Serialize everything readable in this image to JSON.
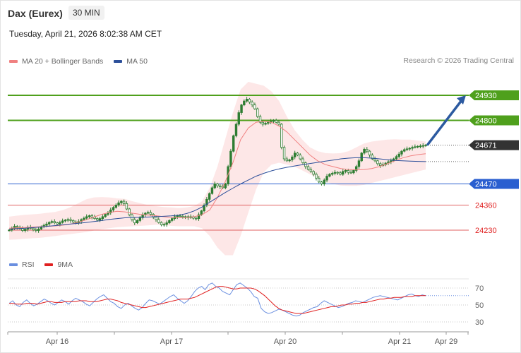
{
  "header": {
    "title": "Dax (Eurex)",
    "interval": "30 MIN",
    "datetime": "Tuesday, April 21, 2026 8:02:38 AM CET"
  },
  "legend": {
    "ma20_label": "MA 20 + Bollinger Bands",
    "ma50_label": "MA 50",
    "copyright": "Research © 2026 Trading Central"
  },
  "rsi_legend": {
    "rsi_label": "RSI",
    "ma9_label": "9MA"
  },
  "colors": {
    "resistance": "#4fa01c",
    "support_blue": "#2a5fd0",
    "support_red": "#e06060",
    "last_price": "#333333",
    "ma20": "#f08080",
    "ma50": "#2c4f9a",
    "bollinger_fill": "#fde3e3",
    "candle": "#2e7d32",
    "arrow": "#2c5aa0",
    "rsi": "#6a8fe0",
    "rsi_ma": "#e02020"
  },
  "chart_data": [
    {
      "type": "candlestick",
      "title": "Dax (Eurex)",
      "ylim": [
        24180,
        24990
      ],
      "x_ticks": [
        "Apr 16",
        "Apr 17",
        "Apr 20",
        "Apr 21",
        "Apr 29"
      ],
      "levels": [
        {
          "value": 24930,
          "label": "24930",
          "kind": "resistance"
        },
        {
          "value": 24800,
          "label": "24800",
          "kind": "resistance"
        },
        {
          "value": 24671,
          "label": "24671",
          "kind": "last"
        },
        {
          "value": 24470,
          "label": "24470",
          "kind": "support"
        },
        {
          "value": 24360,
          "label": "24360",
          "kind": "support-minor"
        },
        {
          "value": 24230,
          "label": "24230",
          "kind": "support-minor"
        }
      ],
      "close": [
        24230,
        24240,
        24250,
        24245,
        24238,
        24228,
        24235,
        24245,
        24240,
        24232,
        24228,
        24236,
        24248,
        24255,
        24262,
        24270,
        24275,
        24268,
        24262,
        24270,
        24278,
        24282,
        24285,
        24280,
        24272,
        24268,
        24275,
        24285,
        24292,
        24300,
        24305,
        24298,
        24290,
        24282,
        24290,
        24300,
        24312,
        24320,
        24335,
        24348,
        24360,
        24372,
        24380,
        24368,
        24340,
        24310,
        24285,
        24268,
        24280,
        24295,
        24310,
        24318,
        24322,
        24312,
        24298,
        24285,
        24270,
        24258,
        24260,
        24268,
        24280,
        24290,
        24300,
        24305,
        24302,
        24298,
        24300,
        24295,
        24300,
        24292,
        24290,
        24310,
        24330,
        24360,
        24390,
        24420,
        24450,
        24470,
        24460,
        24455,
        24450,
        24470,
        24560,
        24640,
        24720,
        24780,
        24840,
        24880,
        24900,
        24910,
        24895,
        24880,
        24860,
        24820,
        24790,
        24780,
        24785,
        24790,
        24795,
        24800,
        24790,
        24780,
        24660,
        24600,
        24590,
        24595,
        24610,
        24630,
        24620,
        24600,
        24580,
        24560,
        24545,
        24535,
        24520,
        24500,
        24480,
        24470,
        24490,
        24510,
        24520,
        24525,
        24530,
        24528,
        24520,
        24535,
        24540,
        24530,
        24528,
        24540,
        24560,
        24590,
        24630,
        24650,
        24640,
        24620,
        24600,
        24590,
        24575,
        24565,
        24570,
        24578,
        24585,
        24590,
        24600,
        24612,
        24625,
        24640,
        24648,
        24652,
        24655,
        24660,
        24663,
        24665,
        24667,
        24669,
        24671
      ],
      "ma20": [
        24240,
        24242,
        24244,
        24246,
        24248,
        24250,
        24252,
        24256,
        24262,
        24272,
        24284,
        24298,
        24312,
        24322,
        24328,
        24325,
        24318,
        24312,
        24308,
        24305,
        24300,
        24296,
        24294,
        24296,
        24300,
        24310,
        24335,
        24400,
        24480,
        24580,
        24700,
        24760,
        24790,
        24795,
        24790,
        24770,
        24740,
        24700,
        24660,
        24620,
        24590,
        24570,
        24560,
        24550,
        24545,
        24543,
        24545,
        24550,
        24560,
        24575,
        24590,
        24605,
        24615,
        24622,
        24627
      ],
      "ma50": [
        24235,
        24238,
        24240,
        24243,
        24246,
        24250,
        24254,
        24258,
        24262,
        24266,
        24270,
        24275,
        24280,
        24286,
        24290,
        24294,
        24296,
        24297,
        24298,
        24300,
        24302,
        24304,
        24308,
        24316,
        24330,
        24350,
        24375,
        24400,
        24425,
        24448,
        24470,
        24490,
        24510,
        24525,
        24538,
        24548,
        24556,
        24563,
        24570,
        24576,
        24582,
        24588,
        24594,
        24600,
        24604,
        24606,
        24606,
        24604,
        24600,
        24596,
        24592,
        24590,
        24588,
        24587,
        24586
      ],
      "bb_upper": [
        24300,
        24305,
        24310,
        24312,
        24315,
        24320,
        24325,
        24335,
        24350,
        24370,
        24390,
        24400,
        24402,
        24400,
        24395,
        24392,
        24380,
        24370,
        24360,
        24355,
        24350,
        24348,
        24345,
        24348,
        24355,
        24380,
        24450,
        24560,
        24700,
        24840,
        24960,
        25000,
        24990,
        24980,
        24950,
        24900,
        24820,
        24750,
        24700,
        24660,
        24640,
        24630,
        24628,
        24630,
        24640,
        24660,
        24680,
        24690,
        24695,
        24700,
        24702,
        24700,
        24700,
        24695,
        24690
      ],
      "bb_lower": [
        24180,
        24182,
        24185,
        24188,
        24190,
        24195,
        24200,
        24205,
        24210,
        24215,
        24220,
        24228,
        24235,
        24240,
        24245,
        24248,
        24250,
        24252,
        24255,
        24258,
        24256,
        24252,
        24250,
        24250,
        24250,
        24240,
        24200,
        24140,
        24100,
        24100,
        24200,
        24320,
        24440,
        24530,
        24570,
        24580,
        24570,
        24560,
        24540,
        24520,
        24500,
        24480,
        24470,
        24462,
        24460,
        24460,
        24465,
        24475,
        24485,
        24495,
        24505,
        24515,
        24525,
        24535,
        24545
      ],
      "projection": {
        "from": 24675,
        "to": 24930
      }
    },
    {
      "type": "line",
      "title": "RSI",
      "ylim": [
        20,
        80
      ],
      "y_ticks": [
        70,
        50,
        30
      ],
      "series": [
        {
          "name": "RSI",
          "values": [
            52,
            55,
            50,
            48,
            53,
            56,
            52,
            49,
            51,
            54,
            57,
            55,
            52,
            50,
            53,
            56,
            54,
            51,
            55,
            58,
            56,
            54,
            51,
            49,
            53,
            57,
            60,
            62,
            58,
            54,
            52,
            48,
            46,
            50,
            52,
            49,
            46,
            44,
            47,
            52,
            56,
            55,
            53,
            51,
            54,
            57,
            60,
            62,
            58,
            55,
            52,
            55,
            60,
            66,
            70,
            72,
            68,
            74,
            76,
            72,
            70,
            66,
            64,
            62,
            68,
            74,
            76,
            73,
            70,
            66,
            60,
            58,
            46,
            42,
            40,
            41,
            43,
            45,
            44,
            42,
            40,
            38,
            37,
            38,
            41,
            43,
            45,
            47,
            48,
            52,
            55,
            53,
            51,
            49,
            47,
            48,
            50,
            52,
            53,
            55,
            54,
            53,
            55,
            57,
            59,
            60,
            61,
            60,
            59,
            58,
            57,
            56,
            58,
            60,
            62,
            63,
            61,
            60,
            62,
            61
          ]
        },
        {
          "name": "9MA",
          "values": [
            52,
            52,
            51,
            51,
            51,
            52,
            52,
            52,
            51,
            52,
            53,
            54,
            54,
            53,
            53,
            53,
            54,
            54,
            54,
            54,
            55,
            55,
            55,
            54,
            54,
            54,
            55,
            56,
            57,
            57,
            56,
            55,
            53,
            52,
            51,
            50,
            49,
            48,
            47,
            47,
            48,
            49,
            50,
            51,
            52,
            53,
            54,
            55,
            56,
            57,
            57,
            57,
            58,
            59,
            61,
            63,
            65,
            67,
            69,
            71,
            72,
            72,
            71,
            70,
            69,
            69,
            70,
            70,
            70,
            70,
            69,
            67,
            64,
            61,
            57,
            53,
            49,
            46,
            44,
            43,
            42,
            41,
            40,
            40,
            40,
            41,
            42,
            43,
            44,
            45,
            46,
            47,
            48,
            48,
            49,
            50,
            50,
            51,
            51,
            52,
            52,
            53,
            53,
            54,
            55,
            56,
            57,
            57,
            58,
            58,
            59,
            59,
            59,
            60,
            60,
            60,
            61,
            61,
            61,
            61
          ]
        }
      ]
    }
  ]
}
